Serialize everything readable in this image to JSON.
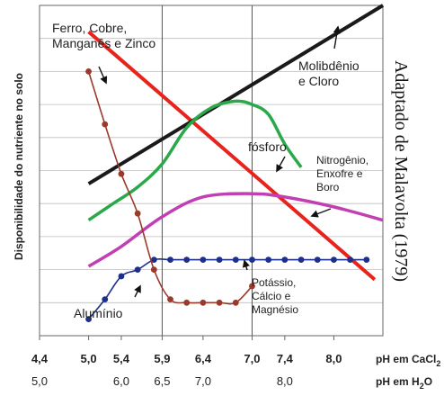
{
  "chart_data": {
    "type": "line",
    "ylabel": "Disponibilidade do nutriente no solo",
    "credit": "Adaptado de Malavolta (1979)",
    "x_axis_ph_cacl2": {
      "label": "pH em CaCl",
      "label_sub": "2",
      "ticks": [
        "4,4",
        "5,0",
        "5,4",
        "5,9",
        "6,4",
        "7,0",
        "7,4",
        "8,0"
      ],
      "values": [
        4.4,
        5.0,
        5.4,
        5.9,
        6.4,
        7.0,
        7.4,
        8.0
      ]
    },
    "x_axis_ph_h2o": {
      "label": "pH em H",
      "label_sub": "2",
      "label_tail": "O",
      "ticks": [
        {
          "text": "5,0",
          "at_cacl2": 4.4
        },
        {
          "text": "6,0",
          "at_cacl2": 5.4
        },
        {
          "text": "6,5",
          "at_cacl2": 5.9
        },
        {
          "text": "7,0",
          "at_cacl2": 6.4
        },
        {
          "text": "8,0",
          "at_cacl2": 7.4
        }
      ]
    },
    "xlim": [
      4.4,
      8.6
    ],
    "ylim": [
      0,
      10
    ],
    "vlines_at": [
      5.9,
      7.0
    ],
    "grid_y": true,
    "series": [
      {
        "name": "Ferro, Cobre, Manganês e Zinco",
        "color": "#e8231c",
        "style": "straight",
        "points": [
          [
            5.0,
            9.2
          ],
          [
            8.5,
            1.7
          ]
        ]
      },
      {
        "name": "Molibdênio e Cloro",
        "color": "#1a1a1a",
        "style": "straight",
        "points": [
          [
            5.0,
            4.6
          ],
          [
            8.6,
            10.0
          ]
        ]
      },
      {
        "name": "fósforo",
        "color": "#2ba84a",
        "style": "smooth",
        "points": [
          [
            5.0,
            3.5
          ],
          [
            5.3,
            4.0
          ],
          [
            5.6,
            4.5
          ],
          [
            5.9,
            5.2
          ],
          [
            6.2,
            6.3
          ],
          [
            6.5,
            6.9
          ],
          [
            6.8,
            7.1
          ],
          [
            7.0,
            7.0
          ],
          [
            7.2,
            6.7
          ],
          [
            7.4,
            5.8
          ],
          [
            7.6,
            5.1
          ]
        ]
      },
      {
        "name": "Nitrogênio, Enxofre e Boro",
        "color": "#c23fb3",
        "style": "smooth",
        "points": [
          [
            5.0,
            2.1
          ],
          [
            5.4,
            2.7
          ],
          [
            5.9,
            3.6
          ],
          [
            6.4,
            4.2
          ],
          [
            7.0,
            4.3
          ],
          [
            7.4,
            4.2
          ],
          [
            8.0,
            3.9
          ],
          [
            8.6,
            3.5
          ]
        ]
      },
      {
        "name": "Potássio, Cálcio e Magnésio",
        "color": "#1c2f8c",
        "style": "markers",
        "points": [
          [
            5.0,
            0.5
          ],
          [
            5.2,
            1.1
          ],
          [
            5.4,
            1.8
          ],
          [
            5.6,
            2.0
          ],
          [
            5.8,
            2.3
          ],
          [
            6.0,
            2.3
          ],
          [
            6.2,
            2.3
          ],
          [
            6.4,
            2.3
          ],
          [
            6.6,
            2.3
          ],
          [
            6.8,
            2.3
          ],
          [
            7.0,
            2.3
          ],
          [
            7.2,
            2.3
          ],
          [
            7.4,
            2.3
          ],
          [
            7.6,
            2.3
          ],
          [
            7.8,
            2.3
          ],
          [
            8.0,
            2.3
          ],
          [
            8.2,
            2.3
          ],
          [
            8.4,
            2.3
          ]
        ]
      },
      {
        "name": "Alumínio",
        "color": "#9a3a2a",
        "style": "markers",
        "points": [
          [
            5.0,
            8.0
          ],
          [
            5.2,
            6.4
          ],
          [
            5.4,
            4.9
          ],
          [
            5.6,
            3.7
          ],
          [
            5.8,
            2.0
          ],
          [
            6.0,
            1.1
          ],
          [
            6.2,
            1.0
          ],
          [
            6.4,
            1.0
          ],
          [
            6.6,
            1.0
          ],
          [
            6.8,
            1.0
          ],
          [
            7.0,
            1.5
          ]
        ]
      }
    ],
    "annotations": [
      {
        "lines": [
          "Ferro, Cobre,",
          "Manganês e Zinco"
        ],
        "series": 0
      },
      {
        "lines": [
          "Molibdênio",
          "e Cloro"
        ],
        "series": 1
      },
      {
        "lines": [
          "fósforo"
        ],
        "series": 2
      },
      {
        "lines": [
          "Nitrogênio,",
          "Enxofre e",
          "Boro"
        ],
        "series": 3
      },
      {
        "lines": [
          "Potássio,",
          "Cálcio e",
          "Magnésio"
        ],
        "series": 4
      },
      {
        "lines": [
          "Alumínio"
        ],
        "series": 5
      }
    ]
  }
}
